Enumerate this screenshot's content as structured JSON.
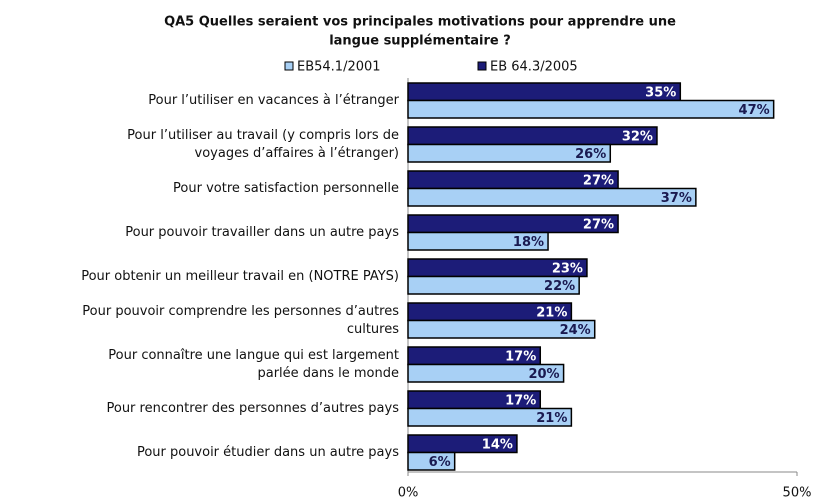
{
  "chart_data": {
    "type": "bar",
    "orientation": "horizontal",
    "title": [
      "QA5 Quelles seraient vos principales motivations pour apprendre une",
      "langue supplémentaire ?"
    ],
    "categories": [
      [
        "Pour l’utiliser en vacances à l’étranger"
      ],
      [
        "Pour l’utiliser au travail (y compris lors de",
        "voyages d’affaires à l’étranger)"
      ],
      [
        "Pour votre satisfaction personnelle"
      ],
      [
        "Pour pouvoir travailler dans un autre pays"
      ],
      [
        "Pour obtenir un meilleur travail en (NOTRE PAYS)"
      ],
      [
        "Pour pouvoir comprendre les personnes d’autres",
        "cultures"
      ],
      [
        "Pour connaître une langue qui est largement",
        "parlée dans le monde"
      ],
      [
        "Pour rencontrer des personnes d’autres pays"
      ],
      [
        "Pour pouvoir étudier dans un autre pays"
      ]
    ],
    "series": [
      {
        "name": "EB54.1/2001",
        "color": "#a8d0f5",
        "label_color": "#1a1a50",
        "values": [
          47,
          26,
          37,
          18,
          22,
          24,
          20,
          21,
          6
        ],
        "value_labels": [
          "47%",
          "26%",
          "37%",
          "18%",
          "22%",
          "24%",
          "20%",
          "21%",
          "6%"
        ]
      },
      {
        "name": "EB 64.3/2005",
        "color": "#1c1c78",
        "label_color": "#ffffff",
        "values": [
          35,
          32,
          27,
          27,
          23,
          21,
          17,
          17,
          14
        ],
        "value_labels": [
          "35%",
          "32%",
          "27%",
          "27%",
          "23%",
          "21%",
          "17%",
          "17%",
          "14%"
        ]
      }
    ],
    "xlim": [
      0,
      50
    ],
    "xticks": [
      {
        "value": 0,
        "label": "0%"
      },
      {
        "value": 50,
        "label": "50%"
      }
    ]
  }
}
